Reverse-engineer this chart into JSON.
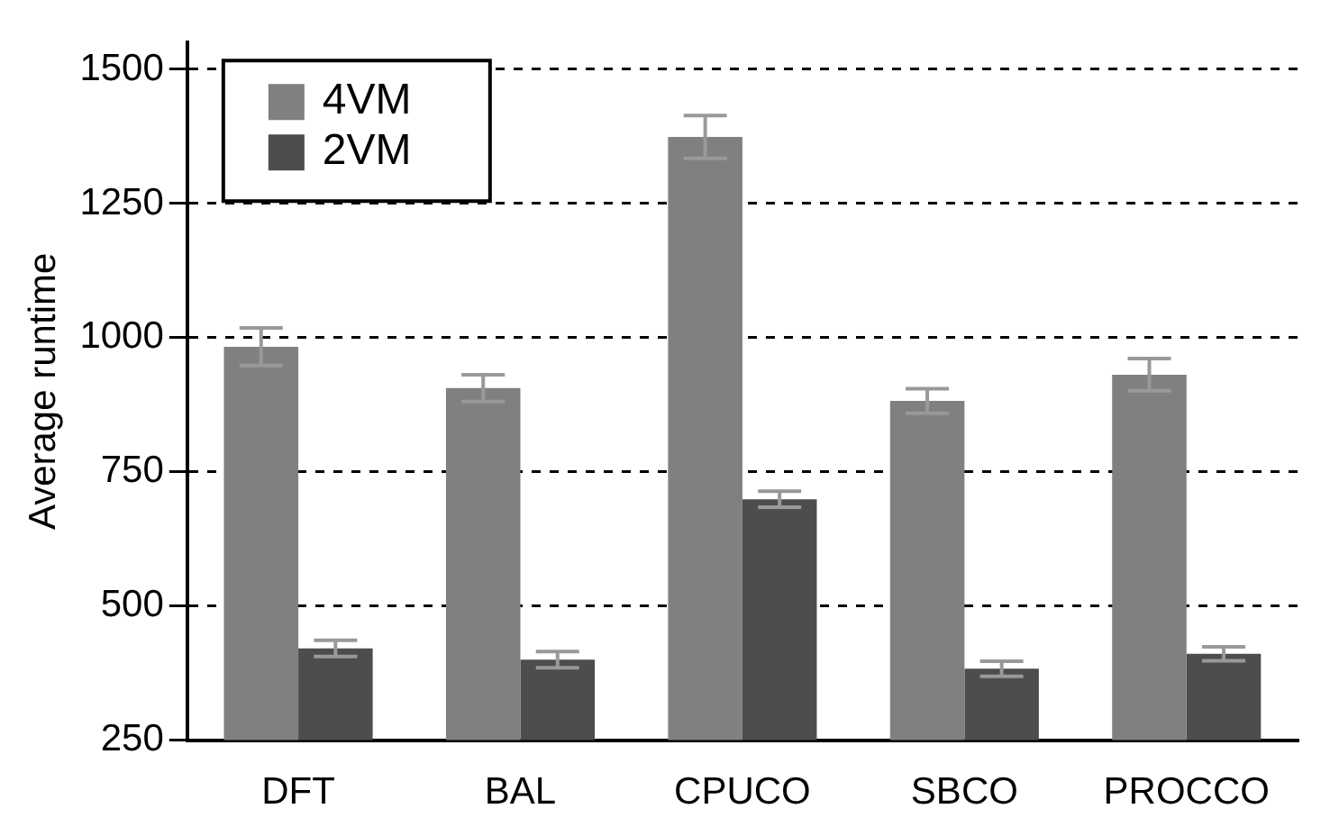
{
  "chart_data": {
    "type": "bar",
    "ylabel": "Average runtime",
    "categories": [
      "DFT",
      "BAL",
      "CPUCO",
      "SBCO",
      "PROCCO"
    ],
    "series": [
      {
        "name": "4VM",
        "color": "#808080",
        "values": [
          983,
          906,
          1374,
          882,
          931
        ],
        "errors": [
          35,
          25,
          40,
          23,
          30
        ]
      },
      {
        "name": "2VM",
        "color": "#4d4d4d",
        "values": [
          421,
          400,
          699,
          383,
          411
        ],
        "errors": [
          15,
          15,
          15,
          14,
          13
        ]
      }
    ],
    "ylim": [
      250,
      1550
    ],
    "yticks": [
      250,
      500,
      750,
      1000,
      1250,
      1500
    ],
    "grid": "y",
    "legend": "top left"
  }
}
